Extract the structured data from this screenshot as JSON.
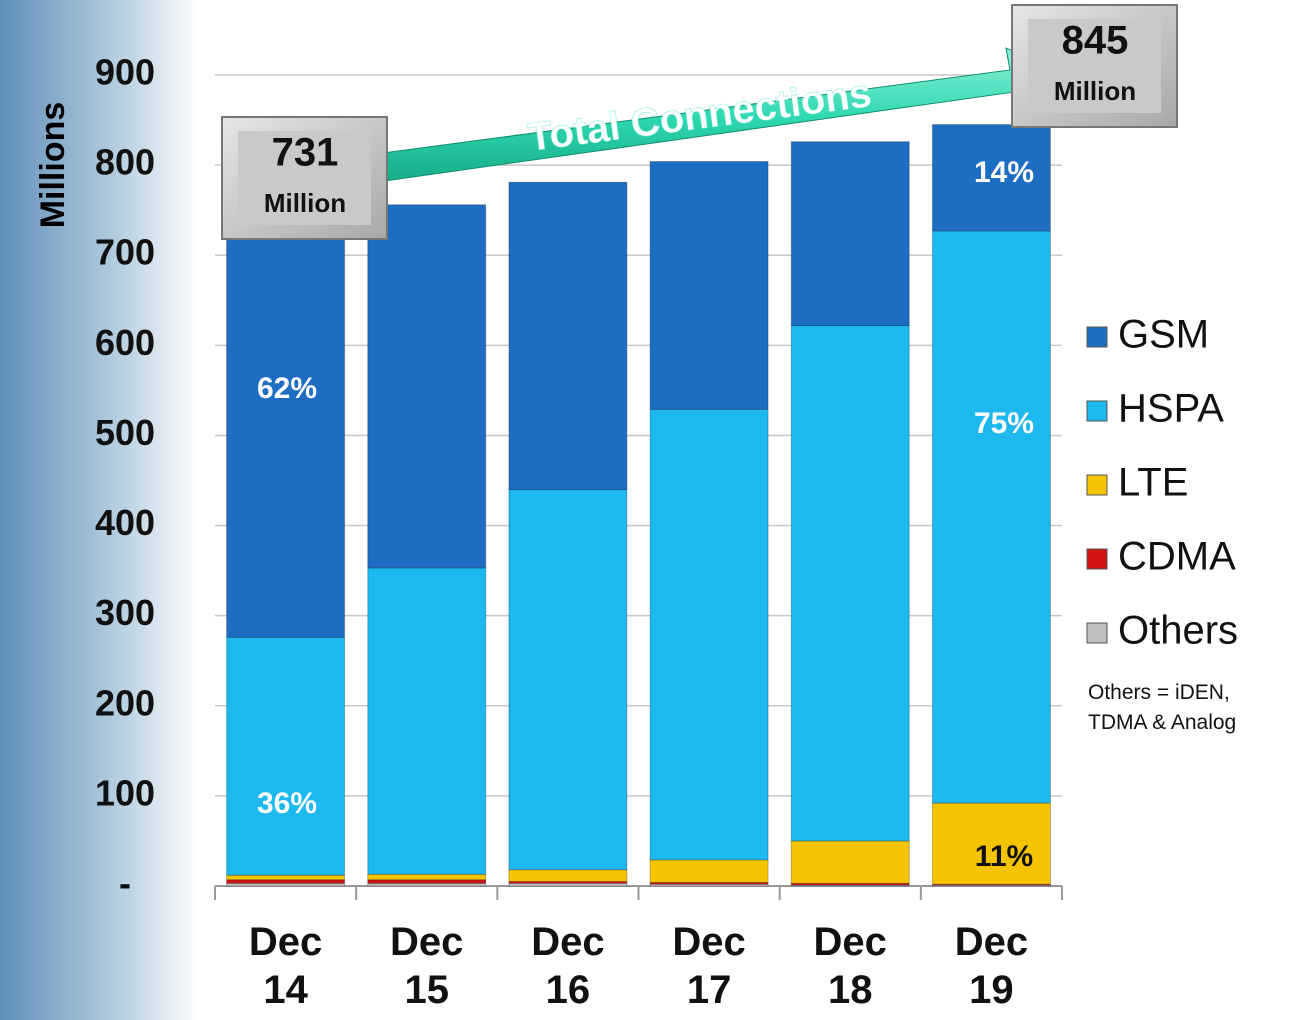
{
  "chart_data": {
    "type": "stacked-bar",
    "y_label": "Millions",
    "categories": [
      "Dec 14",
      "Dec 15",
      "Dec 16",
      "Dec 17",
      "Dec 18",
      "Dec 19"
    ],
    "series": [
      {
        "name": "Others",
        "color": "#bfbfbf",
        "values": [
          3,
          3,
          3,
          2,
          1,
          1
        ]
      },
      {
        "name": "CDMA",
        "color": "#d01414",
        "values": [
          4,
          4,
          2,
          2,
          2,
          1
        ]
      },
      {
        "name": "LTE",
        "color": "#f5c400",
        "values": [
          5,
          6,
          13,
          25,
          47,
          90
        ]
      },
      {
        "name": "HSPA",
        "color": "#1cb8ee",
        "values": [
          264,
          340,
          422,
          500,
          572,
          635
        ]
      },
      {
        "name": "GSM",
        "color": "#1d6ec2",
        "values": [
          455,
          403,
          341,
          275,
          204,
          118
        ]
      }
    ],
    "legend_order": [
      "GSM",
      "HSPA",
      "LTE",
      "CDMA",
      "Others"
    ],
    "ylim": [
      0,
      900
    ],
    "yticks": [
      {
        "value": 0,
        "label": "-"
      },
      100,
      200,
      300,
      400,
      500,
      600,
      700,
      800,
      900
    ],
    "grid": true,
    "annotations": [
      "62%",
      "36%",
      "14%",
      "75%",
      "11%"
    ],
    "arrow_label": "Total Connections",
    "callouts": [
      {
        "value": 731,
        "unit": "Million"
      },
      {
        "value": 845,
        "unit": "Million"
      }
    ],
    "note": "Others = iDEN, TDMA & Analog"
  }
}
